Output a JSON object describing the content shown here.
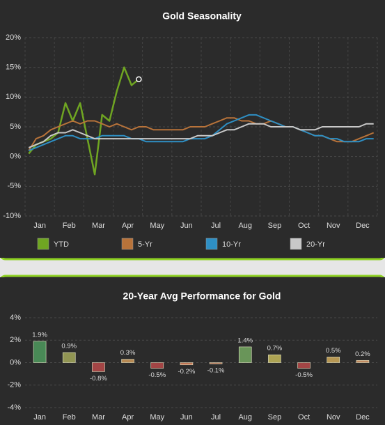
{
  "chart_data": [
    {
      "type": "line",
      "title": "Gold Seasonality",
      "categories": [
        null,
        "Jan",
        null,
        null,
        null,
        "Feb",
        null,
        null,
        null,
        "Mar",
        null,
        null,
        null,
        "Apr",
        null,
        null,
        null,
        "May",
        null,
        null,
        null,
        "Jun",
        null,
        null,
        null,
        "Jul",
        null,
        null,
        null,
        "Aug",
        null,
        null,
        null,
        "Sep",
        null,
        null,
        null,
        "Oct",
        null,
        null,
        null,
        "Nov",
        null,
        null,
        null,
        "Dec",
        null,
        null
      ],
      "series": [
        {
          "name": "YTD",
          "color": "#6fa522",
          "values": [
            0.5,
            2,
            2.5,
            3,
            4,
            9,
            6,
            9,
            3,
            -3,
            7,
            6,
            11,
            15,
            12,
            13,
            null,
            null,
            null,
            null,
            null,
            null,
            null,
            null,
            null,
            null,
            null,
            null,
            null,
            null,
            null,
            null,
            null,
            null,
            null,
            null,
            null,
            null,
            null,
            null,
            null,
            null,
            null,
            null,
            null,
            null,
            null,
            null
          ]
        },
        {
          "name": "5-Yr",
          "color": "#b8733a",
          "values": [
            1,
            3,
            3.5,
            4.5,
            5,
            5.5,
            6,
            5.5,
            6,
            6,
            5.5,
            5,
            5.5,
            5,
            4.5,
            5,
            5,
            4.5,
            4.5,
            4.5,
            4.5,
            4.5,
            5,
            5,
            5,
            5.5,
            6,
            6.5,
            6.5,
            6,
            6,
            5.5,
            5.5,
            6,
            5.5,
            5,
            5,
            4.5,
            4,
            3.5,
            3.5,
            3,
            2.5,
            2.5,
            2.5,
            3,
            3.5,
            4
          ]
        },
        {
          "name": "10-Yr",
          "color": "#2e8fc4",
          "values": [
            1,
            1.5,
            2,
            2.5,
            3,
            3.5,
            3.5,
            3,
            3,
            3,
            3.5,
            3.5,
            3.5,
            3.5,
            3,
            3,
            2.5,
            2.5,
            2.5,
            2.5,
            2.5,
            2.5,
            3,
            3,
            3,
            3.5,
            4.5,
            5.5,
            6,
            6.5,
            7,
            7,
            6.5,
            6,
            5.5,
            5,
            5,
            4.5,
            4,
            3.5,
            3.5,
            3,
            3,
            2.5,
            2.5,
            2.5,
            3,
            3
          ]
        },
        {
          "name": "20-Yr",
          "color": "#c8c8c8",
          "values": [
            1.5,
            2,
            2.5,
            3.5,
            4,
            4,
            4.5,
            4,
            3.5,
            3,
            3,
            3,
            3,
            3,
            3,
            3,
            3,
            3,
            3,
            3,
            3,
            3,
            3,
            3.5,
            3.5,
            3.5,
            4,
            4.5,
            4.5,
            5,
            5.5,
            5.5,
            5.5,
            5,
            5,
            5,
            5,
            4.5,
            4.5,
            4.5,
            5,
            5,
            5,
            5,
            5,
            5,
            5.5,
            5.5
          ]
        }
      ],
      "ylim": [
        -10,
        20
      ],
      "yticks": [
        {
          "value": -10,
          "label": "-10%"
        },
        {
          "value": -5,
          "label": "-5%"
        },
        {
          "value": 0,
          "label": "0%"
        },
        {
          "value": 5,
          "label": "5%"
        },
        {
          "value": 10,
          "label": "10%"
        },
        {
          "value": 15,
          "label": "15%"
        },
        {
          "value": 20,
          "label": "20%"
        }
      ],
      "grid": true
    },
    {
      "type": "bar",
      "title": "20-Year Avg Performance for Gold",
      "categories": [
        "Jan",
        "Feb",
        "Mar",
        "Apr",
        "May",
        "Jun",
        "Jul",
        "Aug",
        "Sep",
        "Oct",
        "Nov",
        "Dec"
      ],
      "values": [
        1.9,
        0.9,
        -0.8,
        0.3,
        -0.5,
        -0.2,
        -0.1,
        1.4,
        0.7,
        -0.5,
        0.5,
        0.2
      ],
      "value_labels": [
        "1.9%",
        "0.9%",
        "-0.8%",
        "0.3%",
        "-0.5%",
        "-0.2%",
        "-0.1%",
        "1.4%",
        "0.7%",
        "-0.5%",
        "0.5%",
        "0.2%"
      ],
      "colors": [
        "#4f9a5e",
        "#a3a85a",
        "#b84a4a",
        "#d09a5a",
        "#b84a4a",
        "#d9805a",
        "#d9805a",
        "#74a862",
        "#c4b85a",
        "#b84a4a",
        "#d0aa5a",
        "#dc9a6a"
      ],
      "ylim": [
        -4,
        4
      ],
      "yticks": [
        {
          "value": -4,
          "label": "-4%"
        },
        {
          "value": -2,
          "label": "-2%"
        },
        {
          "value": 0,
          "label": "0%"
        },
        {
          "value": 2,
          "label": "2%"
        },
        {
          "value": 4,
          "label": "4%"
        }
      ],
      "grid": true
    }
  ]
}
